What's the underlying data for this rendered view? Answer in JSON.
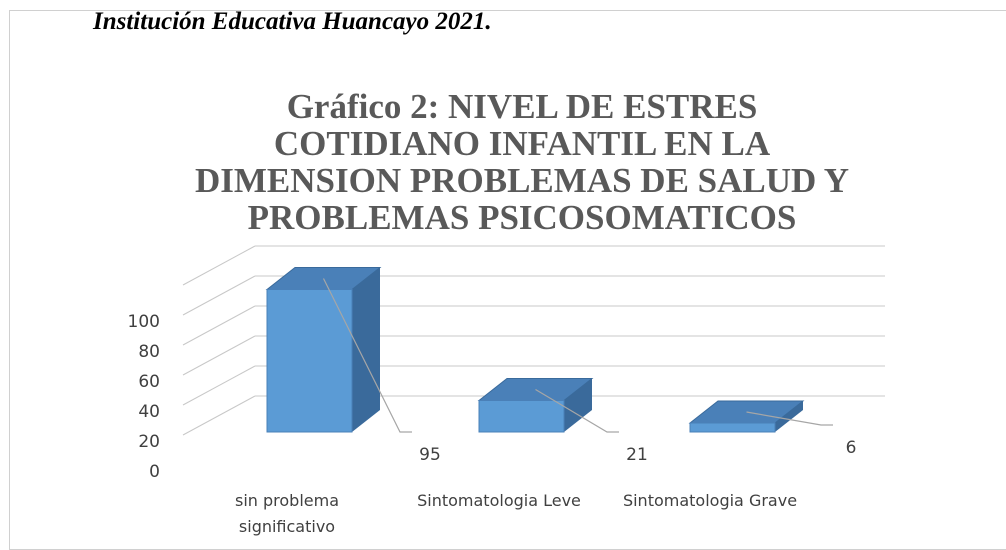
{
  "heading": "Institución Educativa Huancayo 2021.",
  "chart_data": {
    "type": "bar3d",
    "title": "Gráfico 2: NIVEL DE ESTRES COTIDIANO INFANTIL EN LA DIMENSION PROBLEMAS DE SALUD Y PROBLEMAS PSICOSOMATICOS",
    "categories": [
      "sin problema significativo",
      "Sintomatologia Leve",
      "Sintomatologia Grave"
    ],
    "values": [
      95,
      21,
      6
    ],
    "color": "#5b9bd5",
    "ylim": [
      0,
      100
    ],
    "yticks": [
      0,
      20,
      40,
      60,
      80,
      100
    ],
    "grid": true
  }
}
